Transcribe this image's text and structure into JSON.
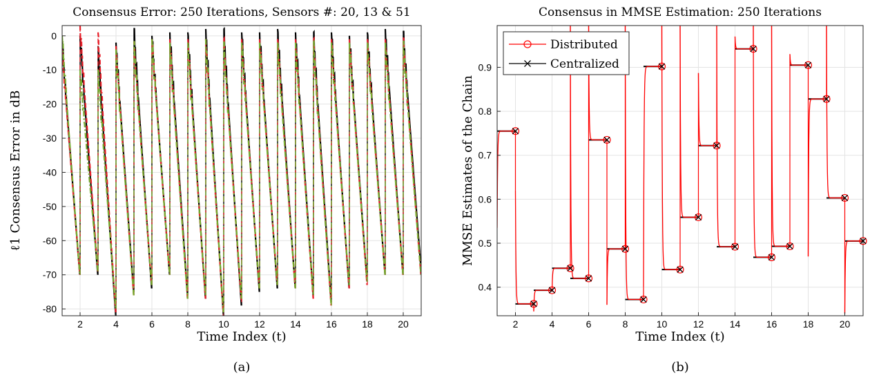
{
  "chart_data": [
    {
      "type": "line",
      "panel": "(a)",
      "title": "Consensus Error: 250 Iterations, Sensors #: 20, 13 & 51",
      "xlabel": "Time Index (t)",
      "ylabel": "ℓ1 Consensus Error in dB",
      "xlim": [
        1,
        21
      ],
      "ylim": [
        -82,
        3
      ],
      "xticks": [
        2,
        4,
        6,
        8,
        10,
        12,
        14,
        16,
        18,
        20
      ],
      "yticks": [
        0,
        -10,
        -20,
        -30,
        -40,
        -50,
        -60,
        -70,
        -80
      ],
      "grid": true,
      "legend": "none",
      "colors": {
        "sensor_black": "#000000",
        "sensor_red": "#e8202a",
        "sensor_green": "#77ac30"
      },
      "series": [
        {
          "line_style": "solid",
          "color": "black",
          "segments": [
            {
              "t": 1,
              "start_db": -2,
              "end_db": -70
            },
            {
              "t": 2,
              "start_db": 0,
              "end_db": -70
            },
            {
              "t": 3,
              "start_db": -3,
              "end_db": -82
            },
            {
              "t": 4,
              "start_db": -2,
              "end_db": -75
            },
            {
              "t": 5,
              "start_db": 2,
              "end_db": -74
            },
            {
              "t": 6,
              "start_db": 0,
              "end_db": -70
            },
            {
              "t": 7,
              "start_db": 1,
              "end_db": -76
            },
            {
              "t": 8,
              "start_db": 1,
              "end_db": -77
            },
            {
              "t": 9,
              "start_db": 2,
              "end_db": -82
            },
            {
              "t": 10,
              "start_db": 2,
              "end_db": -79
            },
            {
              "t": 11,
              "start_db": 1,
              "end_db": -75
            },
            {
              "t": 12,
              "start_db": 1,
              "end_db": -74
            },
            {
              "t": 13,
              "start_db": 2,
              "end_db": -74
            },
            {
              "t": 14,
              "start_db": 1,
              "end_db": -76
            },
            {
              "t": 15,
              "start_db": 1,
              "end_db": -78
            },
            {
              "t": 16,
              "start_db": 1,
              "end_db": -74
            },
            {
              "t": 17,
              "start_db": 0,
              "end_db": -72
            },
            {
              "t": 18,
              "start_db": 1,
              "end_db": -70
            },
            {
              "t": 19,
              "start_db": 2,
              "end_db": -70
            },
            {
              "t": 20,
              "start_db": 1,
              "end_db": -68
            }
          ]
        },
        {
          "line_style": "dashed",
          "color": "red",
          "segments": [
            {
              "t": 1,
              "start_db": -4,
              "end_db": -70
            },
            {
              "t": 2,
              "start_db": 3,
              "end_db": -69
            },
            {
              "t": 3,
              "start_db": 1,
              "end_db": -81
            },
            {
              "t": 4,
              "start_db": -3,
              "end_db": -76
            },
            {
              "t": 5,
              "start_db": -2,
              "end_db": -73
            },
            {
              "t": 6,
              "start_db": -1,
              "end_db": -70
            },
            {
              "t": 7,
              "start_db": -1,
              "end_db": -77
            },
            {
              "t": 8,
              "start_db": -1,
              "end_db": -77
            },
            {
              "t": 9,
              "start_db": -1,
              "end_db": -82
            },
            {
              "t": 10,
              "start_db": -1,
              "end_db": -78
            },
            {
              "t": 11,
              "start_db": -1,
              "end_db": -74
            },
            {
              "t": 12,
              "start_db": -1,
              "end_db": -73
            },
            {
              "t": 13,
              "start_db": -1,
              "end_db": -74
            },
            {
              "t": 14,
              "start_db": -1,
              "end_db": -77
            },
            {
              "t": 15,
              "start_db": -1,
              "end_db": -79
            },
            {
              "t": 16,
              "start_db": -1,
              "end_db": -74
            },
            {
              "t": 17,
              "start_db": -1,
              "end_db": -73
            },
            {
              "t": 18,
              "start_db": -1,
              "end_db": -70
            },
            {
              "t": 19,
              "start_db": -1,
              "end_db": -70
            },
            {
              "t": 20,
              "start_db": -1,
              "end_db": -70
            }
          ]
        },
        {
          "line_style": "dash-dot",
          "color": "green",
          "segments": [
            {
              "t": 1,
              "start_db": 0,
              "end_db": -70
            },
            {
              "t": 2,
              "start_db": -10,
              "end_db": -69
            },
            {
              "t": 3,
              "start_db": -10,
              "end_db": -80
            },
            {
              "t": 4,
              "start_db": -4,
              "end_db": -76
            },
            {
              "t": 5,
              "start_db": -2,
              "end_db": -73
            },
            {
              "t": 6,
              "start_db": -1,
              "end_db": -70
            },
            {
              "t": 7,
              "start_db": -2,
              "end_db": -77
            },
            {
              "t": 8,
              "start_db": -2,
              "end_db": -76
            },
            {
              "t": 9,
              "start_db": -1,
              "end_db": -81
            },
            {
              "t": 10,
              "start_db": -2,
              "end_db": -77
            },
            {
              "t": 11,
              "start_db": -2,
              "end_db": -74
            },
            {
              "t": 12,
              "start_db": -2,
              "end_db": -73
            },
            {
              "t": 13,
              "start_db": -2,
              "end_db": -74
            },
            {
              "t": 14,
              "start_db": -2,
              "end_db": -76
            },
            {
              "t": 15,
              "start_db": -2,
              "end_db": -79
            },
            {
              "t": 16,
              "start_db": -2,
              "end_db": -73
            },
            {
              "t": 17,
              "start_db": -2,
              "end_db": -72
            },
            {
              "t": 18,
              "start_db": -2,
              "end_db": -70
            },
            {
              "t": 19,
              "start_db": -2,
              "end_db": -70
            },
            {
              "t": 20,
              "start_db": -2,
              "end_db": -70
            }
          ]
        }
      ]
    },
    {
      "type": "line",
      "panel": "(b)",
      "title": "Consensus in MMSE Estimation: 250 Iterations",
      "xlabel": "Time Index (t)",
      "ylabel": "MMSE Estimates of the Chain",
      "xlim": [
        1,
        21
      ],
      "ylim": [
        0.335,
        0.995
      ],
      "xticks": [
        2,
        4,
        6,
        8,
        10,
        12,
        14,
        16,
        18,
        20
      ],
      "yticks": [
        0.4,
        0.5,
        0.6,
        0.7,
        0.8,
        0.9
      ],
      "grid": true,
      "legend": "top-left",
      "colors": {
        "distributed": "#ff0000",
        "centralized": "#000000"
      },
      "series": [
        {
          "name": "Distributed",
          "marker": "circle",
          "color": "red"
        },
        {
          "name": "Centralized",
          "marker": "x",
          "color": "black"
        }
      ],
      "estimates": [
        {
          "t": 1,
          "value": 0.755,
          "start": 0.535
        },
        {
          "t": 2,
          "value": 0.362,
          "start": 0.62
        },
        {
          "t": 3,
          "value": 0.393,
          "start": 0.345
        },
        {
          "t": 4,
          "value": 0.443,
          "start": 0.39
        },
        {
          "t": 5,
          "value": 0.42,
          "start": 0.995
        },
        {
          "t": 6,
          "value": 0.735,
          "start": 0.995
        },
        {
          "t": 7,
          "value": 0.487,
          "start": 0.36
        },
        {
          "t": 8,
          "value": 0.372,
          "start": 0.995
        },
        {
          "t": 9,
          "value": 0.902,
          "start": 0.4
        },
        {
          "t": 10,
          "value": 0.44,
          "start": 0.995
        },
        {
          "t": 11,
          "value": 0.559,
          "start": 0.995
        },
        {
          "t": 12,
          "value": 0.722,
          "start": 0.887
        },
        {
          "t": 13,
          "value": 0.492,
          "start": 0.995
        },
        {
          "t": 14,
          "value": 0.942,
          "start": 0.97
        },
        {
          "t": 15,
          "value": 0.468,
          "start": 0.995
        },
        {
          "t": 16,
          "value": 0.493,
          "start": 0.995
        },
        {
          "t": 17,
          "value": 0.905,
          "start": 0.93
        },
        {
          "t": 18,
          "value": 0.828,
          "start": 0.47
        },
        {
          "t": 19,
          "value": 0.603,
          "start": 0.995
        },
        {
          "t": 20,
          "value": 0.505,
          "start": 0.34
        }
      ]
    }
  ],
  "captions": {
    "a": "(a)",
    "b": "(b)"
  }
}
